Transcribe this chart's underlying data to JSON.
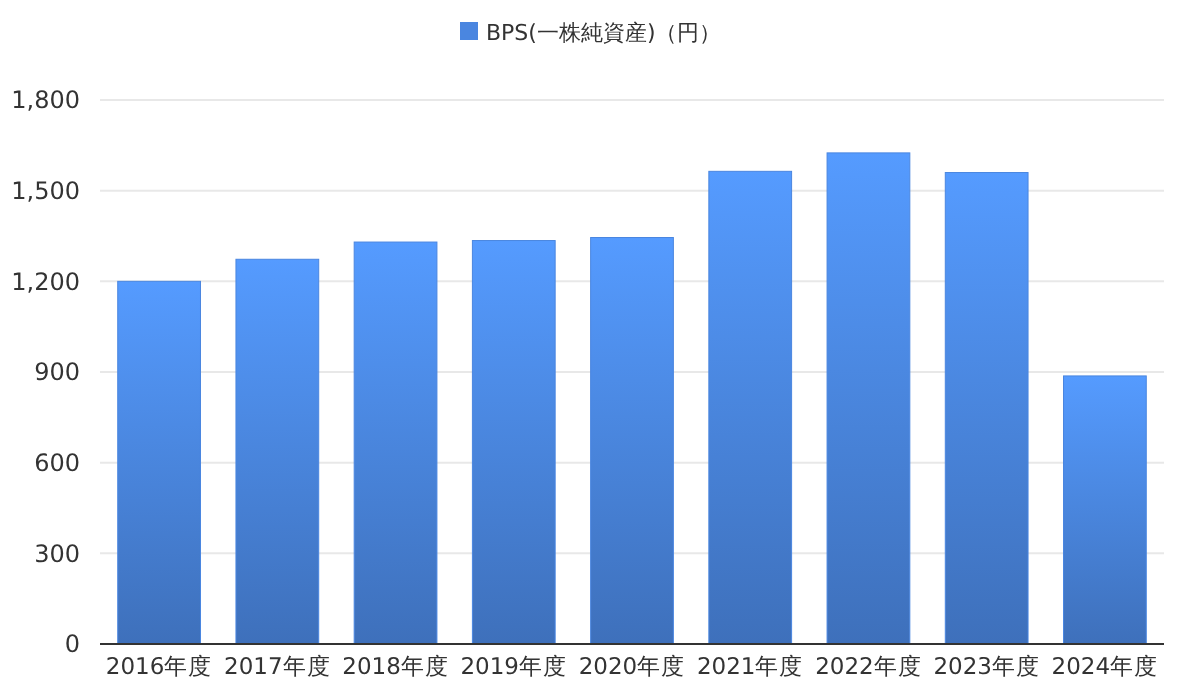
{
  "chart_data": {
    "type": "bar",
    "categories": [
      "2016年度",
      "2017年度",
      "2018年度",
      "2019年度",
      "2020年度",
      "2021年度",
      "2022年度",
      "2023年度",
      "2024年度"
    ],
    "series": [
      {
        "name": "BPS(一株純資産)（円）",
        "color": "#4a86e0",
        "values": [
          1200,
          1273,
          1330,
          1335,
          1345,
          1564,
          1625,
          1560,
          887
        ]
      }
    ],
    "ylim": [
      0,
      1800
    ],
    "yticks": [
      0,
      {
        "value": 300,
        "label": "300"
      },
      {
        "value": 600,
        "label": "600"
      },
      {
        "value": 900,
        "label": "900"
      },
      {
        "value": 1200,
        "label": "1,200"
      },
      {
        "value": 1500,
        "label": "1,500"
      },
      {
        "value": 1800,
        "label": "1,800"
      }
    ],
    "grid": "y",
    "legend": "top"
  }
}
